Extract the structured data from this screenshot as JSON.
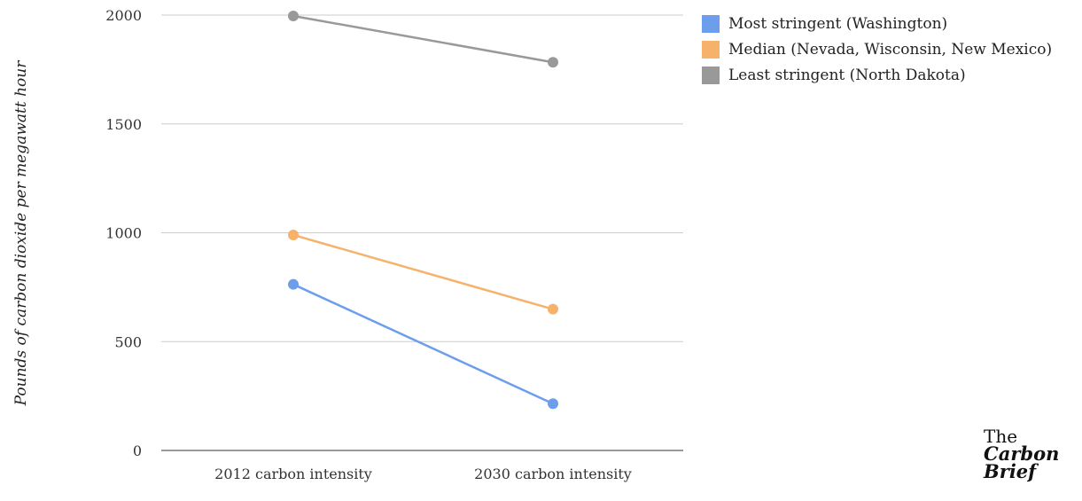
{
  "chart_data": {
    "type": "line",
    "title": "",
    "xlabel": "",
    "ylabel": "Pounds of carbon dioxide per megawatt hour",
    "categories": [
      "2012 carbon intensity",
      "2030 carbon intensity"
    ],
    "ylim": [
      0,
      2000
    ],
    "yticks": [
      "0",
      "500",
      "1000",
      "1500",
      "2000"
    ],
    "grid": true,
    "legend_position": "top-right",
    "series": [
      {
        "name": "Most stringent (Washington)",
        "color": "#6d9eeb",
        "values": [
          763,
          215
        ]
      },
      {
        "name": "Median (Nevada, Wisconsin, New Mexico)",
        "color": "#f6b26b",
        "values": [
          990,
          649
        ]
      },
      {
        "name": "Least stringent (North Dakota)",
        "color": "#999999",
        "values": [
          1996,
          1783
        ]
      }
    ]
  },
  "logo": {
    "line1": "The",
    "line2": "Carbon",
    "line3": "Brief"
  }
}
